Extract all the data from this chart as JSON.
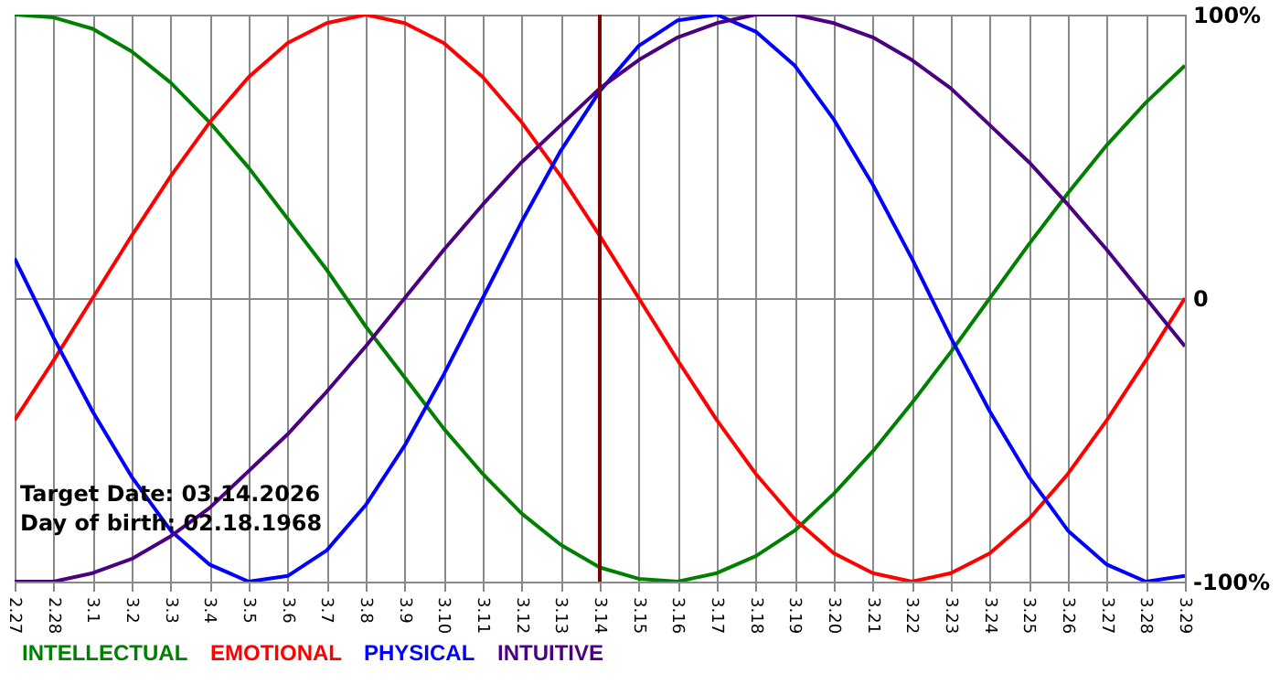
{
  "chart_data": {
    "type": "line",
    "categories": [
      "2.27",
      "2.28",
      "3.1",
      "3.2",
      "3.3",
      "3.4",
      "3.5",
      "3.6",
      "3.7",
      "3.8",
      "3.9",
      "3.10",
      "3.11",
      "3.12",
      "3.13",
      "3.14",
      "3.15",
      "3.16",
      "3.17",
      "3.18",
      "3.19",
      "3.20",
      "3.21",
      "3.22",
      "3.23",
      "3.24",
      "3.25",
      "3.26",
      "3.27",
      "3.28",
      "3.29"
    ],
    "series": [
      {
        "name": "INTELLECTUAL",
        "color": "#008000",
        "values": [
          100,
          99,
          95,
          87,
          76,
          62,
          46,
          28,
          10,
          -10,
          -28,
          -46,
          -62,
          -76,
          -87,
          -95,
          -99,
          -100,
          -97,
          -91,
          -82,
          -69,
          -54,
          -37,
          -19,
          0,
          19,
          37,
          54,
          69,
          82
        ]
      },
      {
        "name": "EMOTIONAL",
        "color": "#ff0000",
        "values": [
          -43,
          -22,
          0,
          22,
          43,
          62,
          78,
          90,
          97,
          100,
          97,
          90,
          78,
          62,
          43,
          22,
          0,
          -22,
          -43,
          -62,
          -78,
          -90,
          -97,
          -100,
          -97,
          -90,
          -78,
          -62,
          -43,
          -22,
          0
        ]
      },
      {
        "name": "PHYSICAL",
        "color": "#0000ff",
        "values": [
          14,
          -14,
          -40,
          -63,
          -82,
          -94,
          -100,
          -98,
          -89,
          -73,
          -52,
          -27,
          0,
          27,
          52,
          73,
          89,
          98,
          100,
          94,
          82,
          63,
          40,
          14,
          -14,
          -40,
          -63,
          -82,
          -94,
          -100,
          -98
        ]
      },
      {
        "name": "INTUITIVE",
        "color": "#4b0082",
        "values": [
          -100,
          -100,
          -97,
          -92,
          -84,
          -74,
          -61,
          -48,
          -33,
          -17,
          0,
          17,
          33,
          48,
          61,
          74,
          84,
          92,
          97,
          100,
          100,
          97,
          92,
          84,
          74,
          61,
          48,
          33,
          17,
          0,
          -17
        ]
      }
    ],
    "ylim": [
      -100,
      100
    ],
    "yticks": [
      {
        "value": -100,
        "label": "-100%"
      },
      0,
      {
        "value": 100,
        "label": "100%"
      }
    ],
    "ref_lines": [
      {
        "axis": "x",
        "value": "3.14",
        "color": "#800000"
      }
    ],
    "annotations": [
      "Target Date: 03.14.2026",
      "Day of birth: 02.18.1968"
    ],
    "grid": true,
    "legend": "bottom",
    "marker": "none",
    "line_style": "solid"
  }
}
